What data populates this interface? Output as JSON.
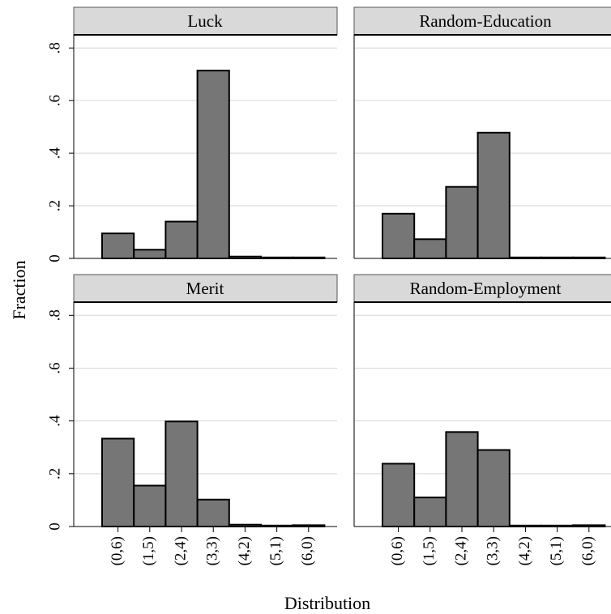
{
  "chart_data": {
    "type": "bar",
    "ylabel": "Fraction",
    "xlabel": "Distribution",
    "categories": [
      "(0,6)",
      "(1,5)",
      "(2,4)",
      "(3,3)",
      "(4,2)",
      "(5,1)",
      "(6,0)"
    ],
    "ylim": [
      0,
      0.85
    ],
    "yticks": [
      {
        "value": 0,
        "label": "0"
      },
      {
        "value": 0.2,
        "label": ".2"
      },
      {
        "value": 0.4,
        "label": ".4"
      },
      {
        "value": 0.6,
        "label": ".6"
      },
      {
        "value": 0.8,
        "label": ".8"
      }
    ],
    "grid": true,
    "bar_color": "#767676",
    "panels": [
      {
        "title": "Luck",
        "values": [
          0.095,
          0.033,
          0.14,
          0.714,
          0.007,
          0.002,
          0.003
        ]
      },
      {
        "title": "Random-Education",
        "values": [
          0.17,
          0.073,
          0.272,
          0.478,
          0,
          0,
          0.003
        ]
      },
      {
        "title": "Merit",
        "values": [
          0.333,
          0.155,
          0.398,
          0.102,
          0.007,
          0,
          0.005
        ]
      },
      {
        "title": "Random-Employment",
        "values": [
          0.238,
          0.11,
          0.358,
          0.29,
          0,
          0,
          0.005
        ]
      }
    ]
  }
}
